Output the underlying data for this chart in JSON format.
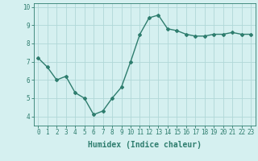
{
  "x": [
    0,
    1,
    2,
    3,
    4,
    5,
    6,
    7,
    8,
    9,
    10,
    11,
    12,
    13,
    14,
    15,
    16,
    17,
    18,
    19,
    20,
    21,
    22,
    23
  ],
  "y": [
    7.2,
    6.7,
    6.0,
    6.2,
    5.3,
    5.0,
    4.1,
    4.3,
    5.0,
    5.6,
    7.0,
    8.5,
    9.4,
    9.55,
    8.8,
    8.7,
    8.5,
    8.4,
    8.4,
    8.5,
    8.5,
    8.6,
    8.5,
    8.5
  ],
  "xlabel": "Humidex (Indice chaleur)",
  "ylim": [
    3.5,
    10.2
  ],
  "xlim": [
    -0.5,
    23.5
  ],
  "yticks": [
    4,
    5,
    6,
    7,
    8,
    9,
    10
  ],
  "xticks": [
    0,
    1,
    2,
    3,
    4,
    5,
    6,
    7,
    8,
    9,
    10,
    11,
    12,
    13,
    14,
    15,
    16,
    17,
    18,
    19,
    20,
    21,
    22,
    23
  ],
  "line_color": "#2e7d6e",
  "bg_color": "#d5f0f0",
  "grid_color": "#b0d8d8",
  "marker": "D",
  "marker_size": 2.0,
  "line_width": 1.0,
  "xlabel_fontsize": 7,
  "tick_fontsize": 5.5
}
